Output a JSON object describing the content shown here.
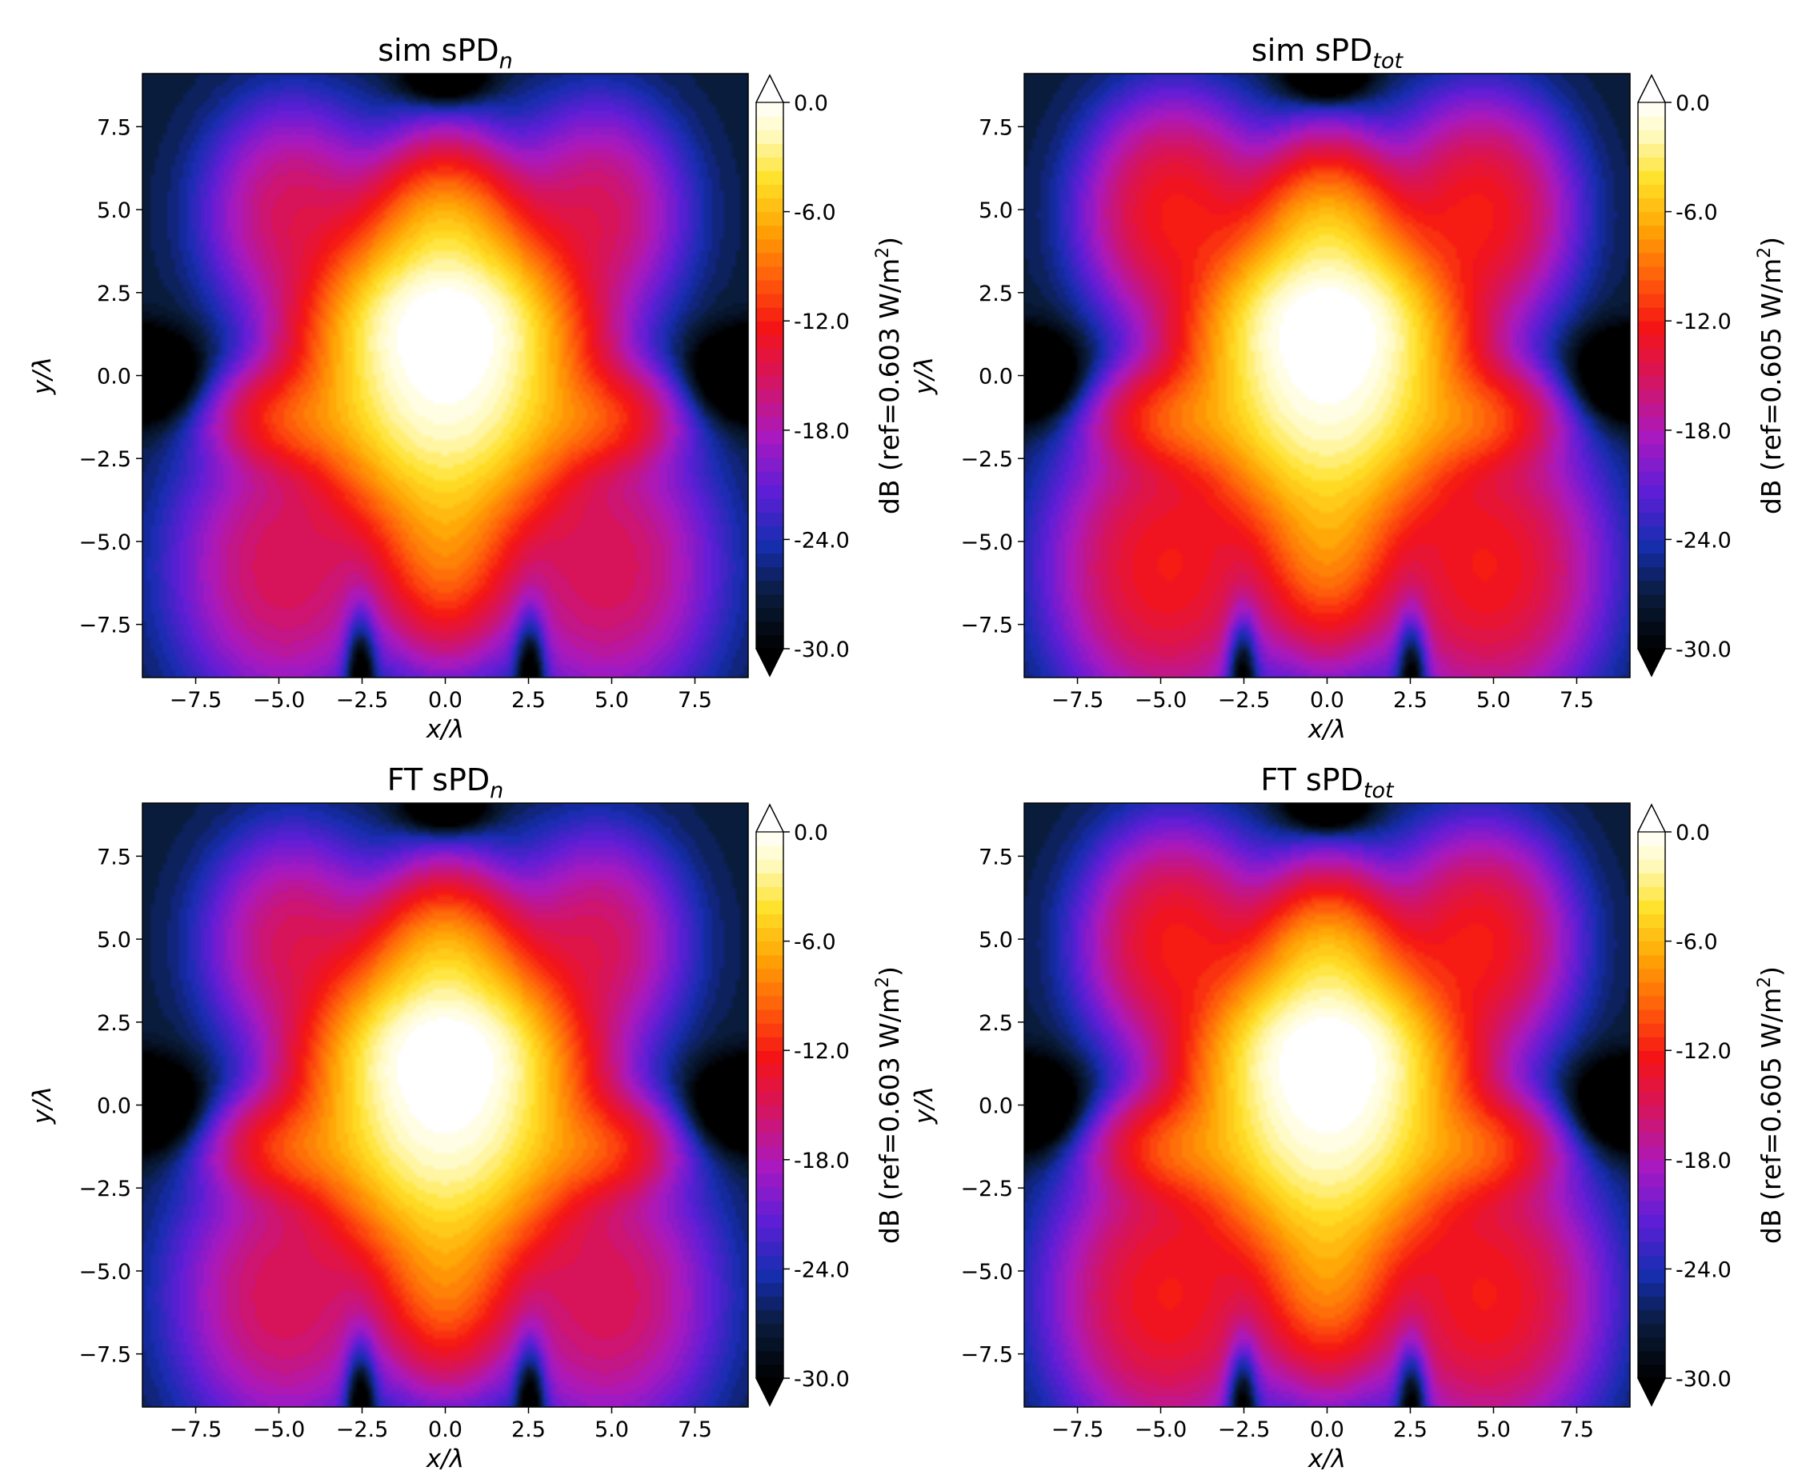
{
  "chart_data": [
    {
      "type": "heatmap",
      "title": "sim sPD",
      "title_sub": "n",
      "xlabel": "x/λ",
      "ylabel": "y/λ",
      "xlim": [
        -9.1,
        9.1
      ],
      "ylim": [
        -9.1,
        9.1
      ],
      "xticks": [
        "−7.5",
        "−5.0",
        "−2.5",
        "0.0",
        "2.5",
        "5.0",
        "7.5"
      ],
      "yticks": [
        "−7.5",
        "−5.0",
        "−2.5",
        "0.0",
        "2.5",
        "5.0",
        "7.5"
      ],
      "xtick_values": [
        -7.5,
        -5.0,
        -2.5,
        0.0,
        2.5,
        5.0,
        7.5
      ],
      "ytick_values": [
        -7.5,
        -5.0,
        -2.5,
        0.0,
        2.5,
        5.0,
        7.5
      ],
      "colorbar": {
        "label": "dB (ref=0.603 W/m",
        "label_sup": "2",
        "label_end": ")",
        "range": [
          -30,
          0
        ],
        "ticks": [
          "0.0",
          "-6.0",
          "-12.0",
          "-18.0",
          "-24.0",
          "-30.0"
        ],
        "tick_values": [
          0,
          -6,
          -12,
          -18,
          -24,
          -30
        ]
      },
      "lobe_levels_db": {
        "center": 0,
        "upper_center": -8,
        "upper_side": -15.5,
        "mid_side": -11,
        "lower_center": -9,
        "lower_side": -15
      },
      "grid": false
    },
    {
      "type": "heatmap",
      "title": "sim sPD",
      "title_sub": "tot",
      "xlabel": "x/λ",
      "ylabel": "y/λ",
      "xlim": [
        -9.1,
        9.1
      ],
      "ylim": [
        -9.1,
        9.1
      ],
      "xticks": [
        "−7.5",
        "−5.0",
        "−2.5",
        "0.0",
        "2.5",
        "5.0",
        "7.5"
      ],
      "yticks": [
        "−7.5",
        "−5.0",
        "−2.5",
        "0.0",
        "2.5",
        "5.0",
        "7.5"
      ],
      "xtick_values": [
        -7.5,
        -5.0,
        -2.5,
        0.0,
        2.5,
        5.0,
        7.5
      ],
      "ytick_values": [
        -7.5,
        -5.0,
        -2.5,
        0.0,
        2.5,
        5.0,
        7.5
      ],
      "colorbar": {
        "label": "dB (ref=0.605 W/m",
        "label_sup": "2",
        "label_end": ")",
        "range": [
          -30,
          0
        ],
        "ticks": [
          "0.0",
          "-6.0",
          "-12.0",
          "-18.0",
          "-24.0",
          "-30.0"
        ],
        "tick_values": [
          0,
          -6,
          -12,
          -18,
          -24,
          -30
        ]
      },
      "lobe_levels_db": {
        "center": 0,
        "upper_center": -7.5,
        "upper_side": -12.5,
        "mid_side": -10.5,
        "lower_center": -8.5,
        "lower_side": -12.5
      },
      "grid": false
    },
    {
      "type": "heatmap",
      "title": "FT  sPD",
      "title_sub": "n",
      "xlabel": "x/λ",
      "ylabel": "y/λ",
      "xlim": [
        -9.1,
        9.1
      ],
      "ylim": [
        -9.1,
        9.1
      ],
      "xticks": [
        "−7.5",
        "−5.0",
        "−2.5",
        "0.0",
        "2.5",
        "5.0",
        "7.5"
      ],
      "yticks": [
        "−7.5",
        "−5.0",
        "−2.5",
        "0.0",
        "2.5",
        "5.0",
        "7.5"
      ],
      "xtick_values": [
        -7.5,
        -5.0,
        -2.5,
        0.0,
        2.5,
        5.0,
        7.5
      ],
      "ytick_values": [
        -7.5,
        -5.0,
        -2.5,
        0.0,
        2.5,
        5.0,
        7.5
      ],
      "colorbar": {
        "label": "dB (ref=0.603 W/m",
        "label_sup": "2",
        "label_end": ")",
        "range": [
          -30,
          0
        ],
        "ticks": [
          "0.0",
          "-6.0",
          "-12.0",
          "-18.0",
          "-24.0",
          "-30.0"
        ],
        "tick_values": [
          0,
          -6,
          -12,
          -18,
          -24,
          -30
        ]
      },
      "lobe_levels_db": {
        "center": 0,
        "upper_center": -8,
        "upper_side": -15.5,
        "mid_side": -11,
        "lower_center": -9,
        "lower_side": -15
      },
      "grid": false
    },
    {
      "type": "heatmap",
      "title": "FT  sPD",
      "title_sub": "tot",
      "xlabel": "x/λ",
      "ylabel": "y/λ",
      "xlim": [
        -9.1,
        9.1
      ],
      "ylim": [
        -9.1,
        9.1
      ],
      "xticks": [
        "−7.5",
        "−5.0",
        "−2.5",
        "0.0",
        "2.5",
        "5.0",
        "7.5"
      ],
      "yticks": [
        "−7.5",
        "−5.0",
        "−2.5",
        "0.0",
        "2.5",
        "5.0",
        "7.5"
      ],
      "xtick_values": [
        -7.5,
        -5.0,
        -2.5,
        0.0,
        2.5,
        5.0,
        7.5
      ],
      "ytick_values": [
        -7.5,
        -5.0,
        -2.5,
        0.0,
        2.5,
        5.0,
        7.5
      ],
      "colorbar": {
        "label": "dB (ref=0.605 W/m",
        "label_sup": "2",
        "label_end": ")",
        "range": [
          -30,
          0
        ],
        "ticks": [
          "0.0",
          "-6.0",
          "-12.0",
          "-18.0",
          "-24.0",
          "-30.0"
        ],
        "tick_values": [
          0,
          -6,
          -12,
          -18,
          -24,
          -30
        ]
      },
      "lobe_levels_db": {
        "center": 0,
        "upper_center": -7.5,
        "upper_side": -12.5,
        "mid_side": -10.5,
        "lower_center": -8.5,
        "lower_side": -12.5
      },
      "grid": false
    }
  ]
}
